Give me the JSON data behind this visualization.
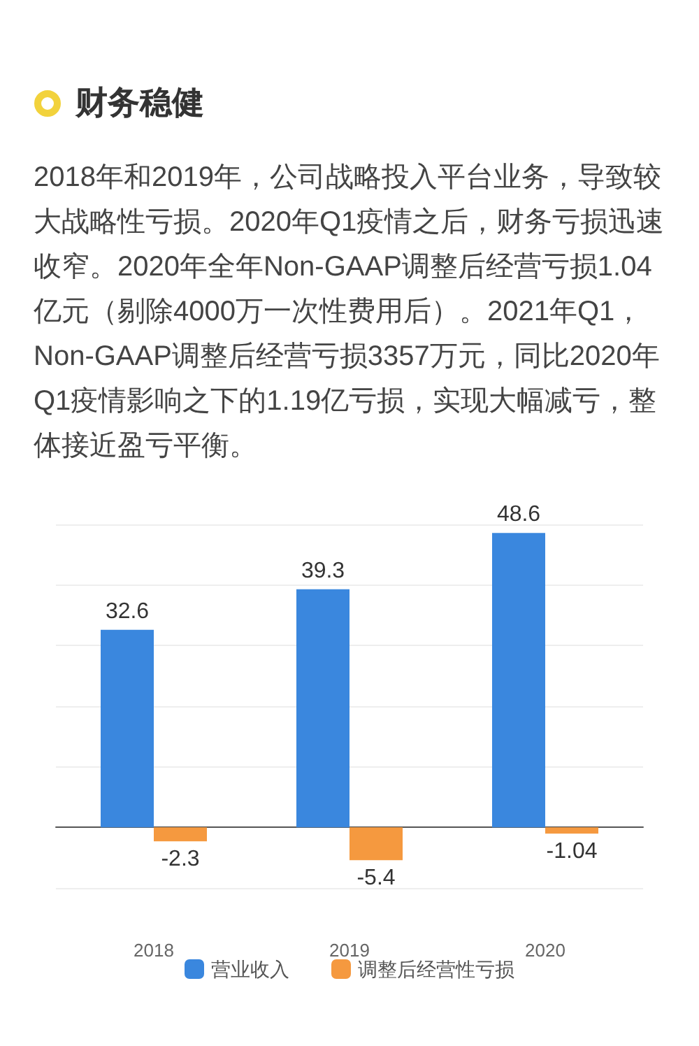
{
  "chart_data": {
    "type": "bar",
    "title": "财务稳健",
    "subtitle": "2018年和2019年，公司战略投入平台业务，导致较大战略性亏损。2020年Q1疫情之后，财务亏损迅速收窄。2020年全年Non-GAAP调整后经营亏损1.04亿元（剔除4000万一次性费用后）。2021年Q1，Non-GAAP调整后经营亏损3357万元，同比2020年Q1疫情影响之下的1.19亿亏损，实现大幅减亏，整体接近盈亏平衡。",
    "categories": [
      "2018",
      "2019",
      "2020"
    ],
    "series": [
      {
        "name": "营业收入",
        "color": "#3a87de",
        "values": [
          32.6,
          39.3,
          48.6
        ]
      },
      {
        "name": "调整后经营性亏损",
        "color": "#f5993f",
        "values": [
          -2.3,
          -5.4,
          -1.04
        ]
      }
    ],
    "data_labels": true,
    "grid": "y",
    "legend": "bottom",
    "tick_labels": "x"
  }
}
